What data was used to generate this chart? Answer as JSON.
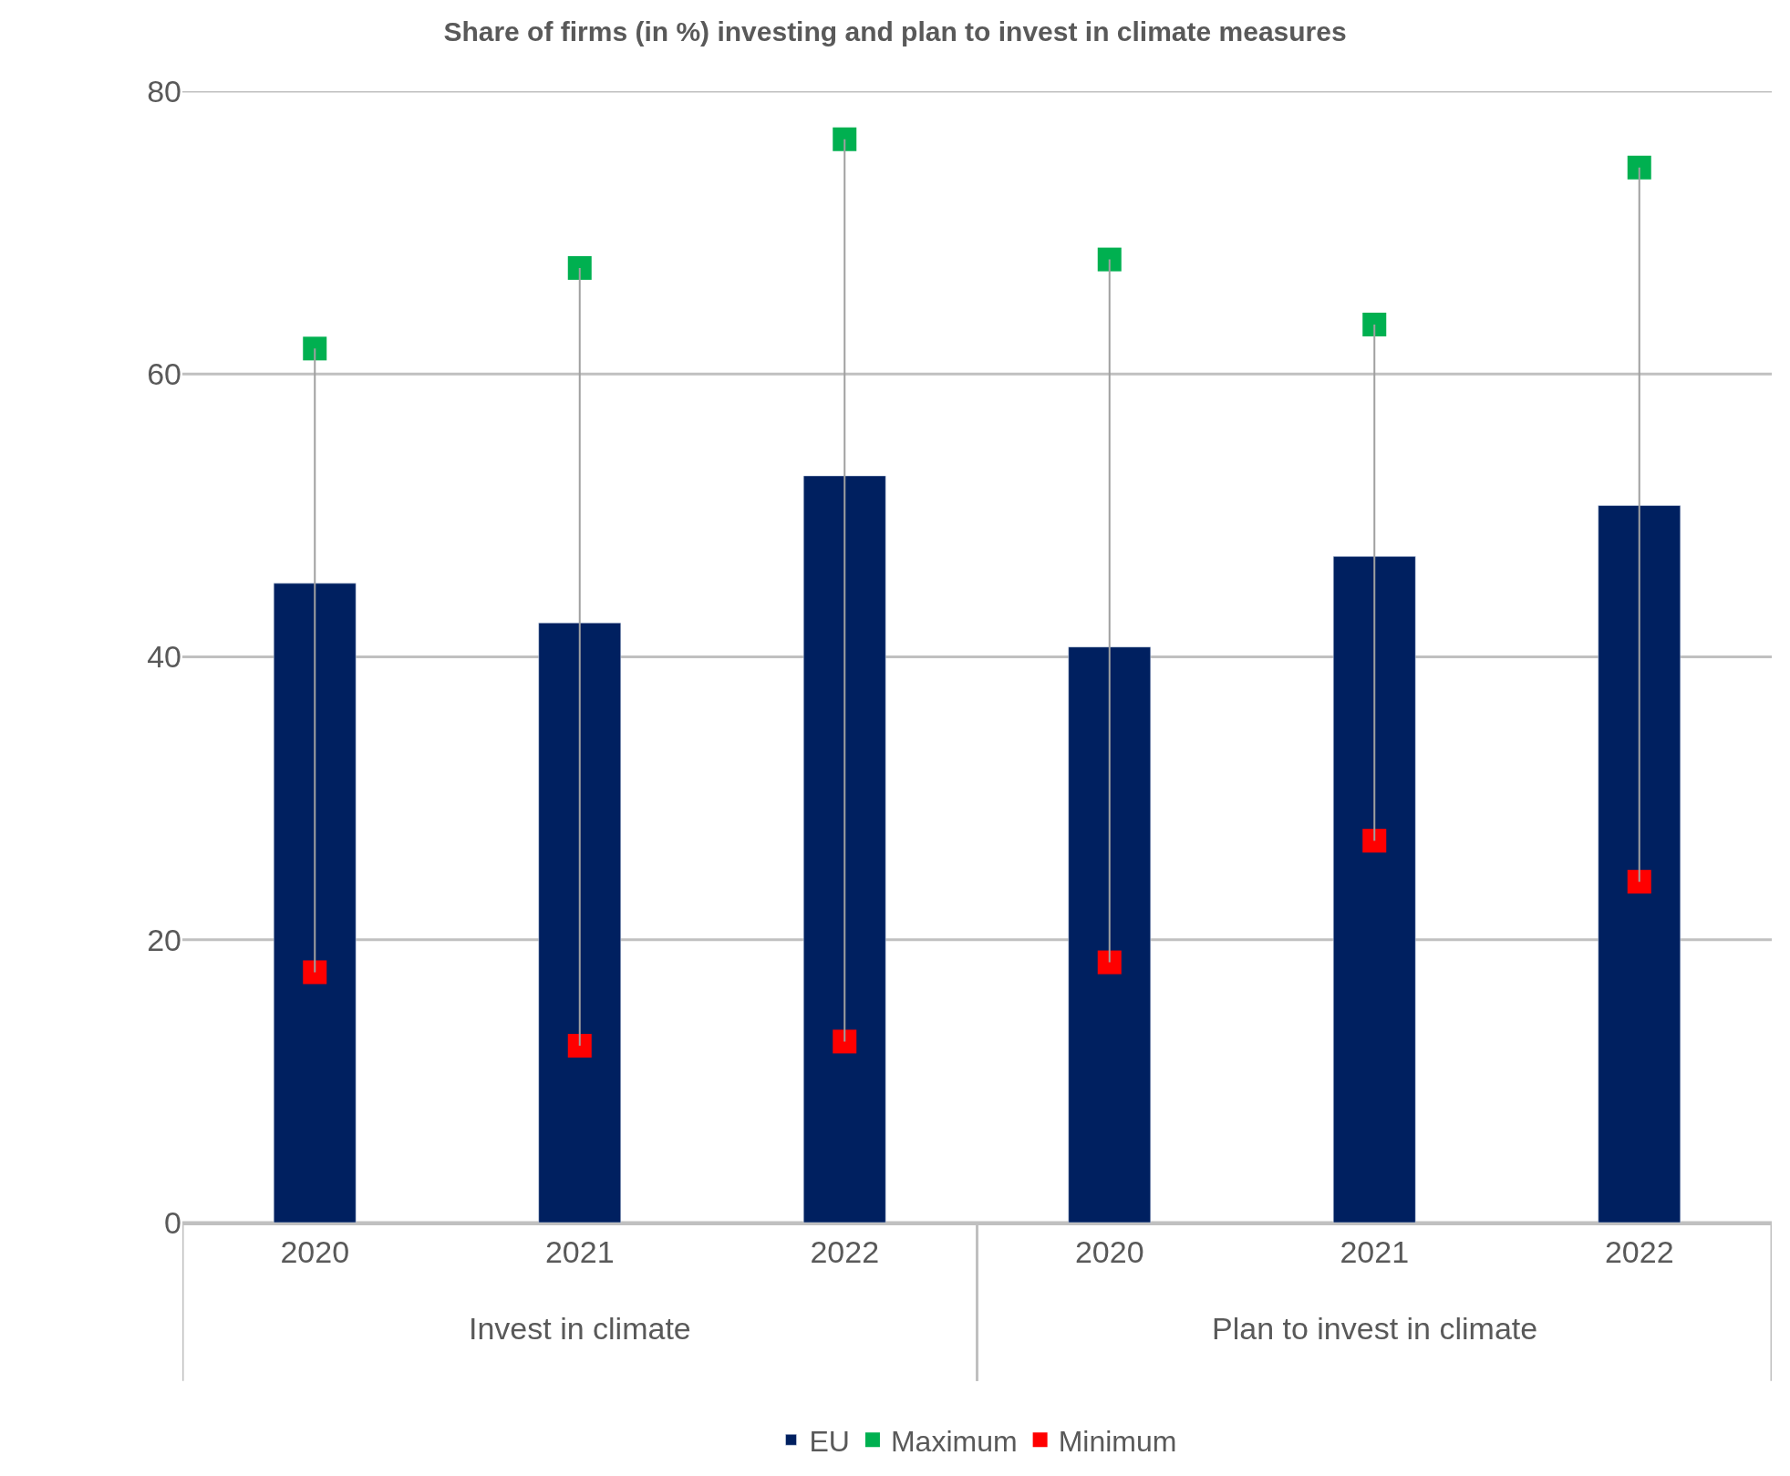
{
  "chart_data": {
    "type": "bar",
    "title": "Share of firms (in %) investing and plan to invest in climate measures",
    "categories": [
      "2020",
      "2021",
      "2022",
      "2020",
      "2021",
      "2022"
    ],
    "series": [
      {
        "name": "EU",
        "color": "#002060",
        "values": [
          45.2,
          42.4,
          52.8,
          40.7,
          47.1,
          50.7
        ]
      },
      {
        "name": "Maximum",
        "type": "scatter",
        "color": "#00b050",
        "values": [
          61.8,
          67.5,
          76.6,
          68.1,
          63.5,
          74.6
        ]
      },
      {
        "name": "Minimum",
        "type": "scatter",
        "color": "#ff0000",
        "values": [
          17.7,
          12.5,
          12.8,
          18.4,
          27.0,
          24.1
        ]
      }
    ],
    "annotations": [
      "Invest in climate",
      "Plan to invest in climate"
    ],
    "ylim": [
      0,
      80
    ],
    "yticks": [
      0,
      20,
      40,
      60,
      80
    ],
    "grid": "y",
    "legend": "bottom",
    "marker": "square"
  }
}
